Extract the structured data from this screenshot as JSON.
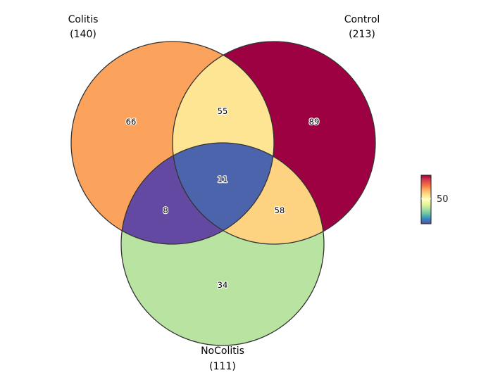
{
  "diagram": {
    "type": "venn",
    "sets": [
      {
        "key": "colitis",
        "name": "Colitis",
        "count": "(140)"
      },
      {
        "key": "control",
        "name": "Control",
        "count": "(213)"
      },
      {
        "key": "nocolitis",
        "name": "NoColitis",
        "count": "(111)"
      }
    ],
    "regions": {
      "colitis_only": {
        "label": "66",
        "value": 66,
        "color": "#fba25c"
      },
      "control_only": {
        "label": "89",
        "value": 89,
        "color": "#9e0142"
      },
      "nocolitis_only": {
        "label": "34",
        "value": 34,
        "color": "#b9e3a1"
      },
      "colitis_control": {
        "label": "55",
        "value": 55,
        "color": "#fee593"
      },
      "colitis_nocolitis": {
        "label": "8",
        "value": 8,
        "color": "#6449a3"
      },
      "control_nocolitis": {
        "label": "58",
        "value": 58,
        "color": "#fdd382"
      },
      "all_three": {
        "label": "11",
        "value": 11,
        "color": "#4b64ab"
      }
    },
    "legend": {
      "tick_label": "50",
      "tick_value": 50,
      "min_value": 8,
      "max_value": 89,
      "colors": [
        "#5e4fa2",
        "#3288bd",
        "#66c2a5",
        "#abdda4",
        "#e6f598",
        "#ffffbf",
        "#fee08b",
        "#fdae61",
        "#f46d43",
        "#d53e4f",
        "#9e0142"
      ]
    }
  }
}
